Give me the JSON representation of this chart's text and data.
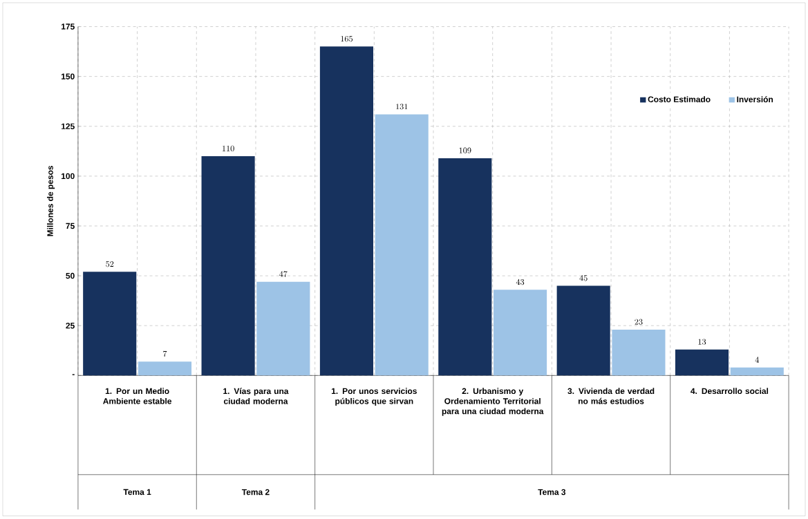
{
  "chart_data": {
    "type": "bar",
    "ylabel": "Millones de pesos",
    "categories": [
      "1. Por un Medio Ambiente estable",
      "1. Vías para una ciudad moderna",
      "1. Por unos servicios públicos que sirvan",
      "2. Urbanismo y Ordenamiento Territorial para una ciudad moderna",
      "3. Vivienda de verdad no más estudios",
      "4. Desarrollo social"
    ],
    "series": [
      {
        "name": "Costo Estimado",
        "color": "#17325e",
        "values": [
          52,
          110,
          165,
          109,
          45,
          13
        ]
      },
      {
        "name": "Inversión",
        "color": "#9dc3e6",
        "values": [
          7,
          47,
          131,
          43,
          23,
          4
        ]
      }
    ],
    "ylim": [
      0,
      175
    ],
    "yticks": [
      {
        "value": 0,
        "label": "-"
      },
      25,
      50,
      75,
      100,
      125,
      150,
      175
    ],
    "grid": true,
    "legend": "top right",
    "data_labels": true,
    "annotations": [
      "Tema 1",
      "Tema 2",
      "Tema 3"
    ]
  }
}
